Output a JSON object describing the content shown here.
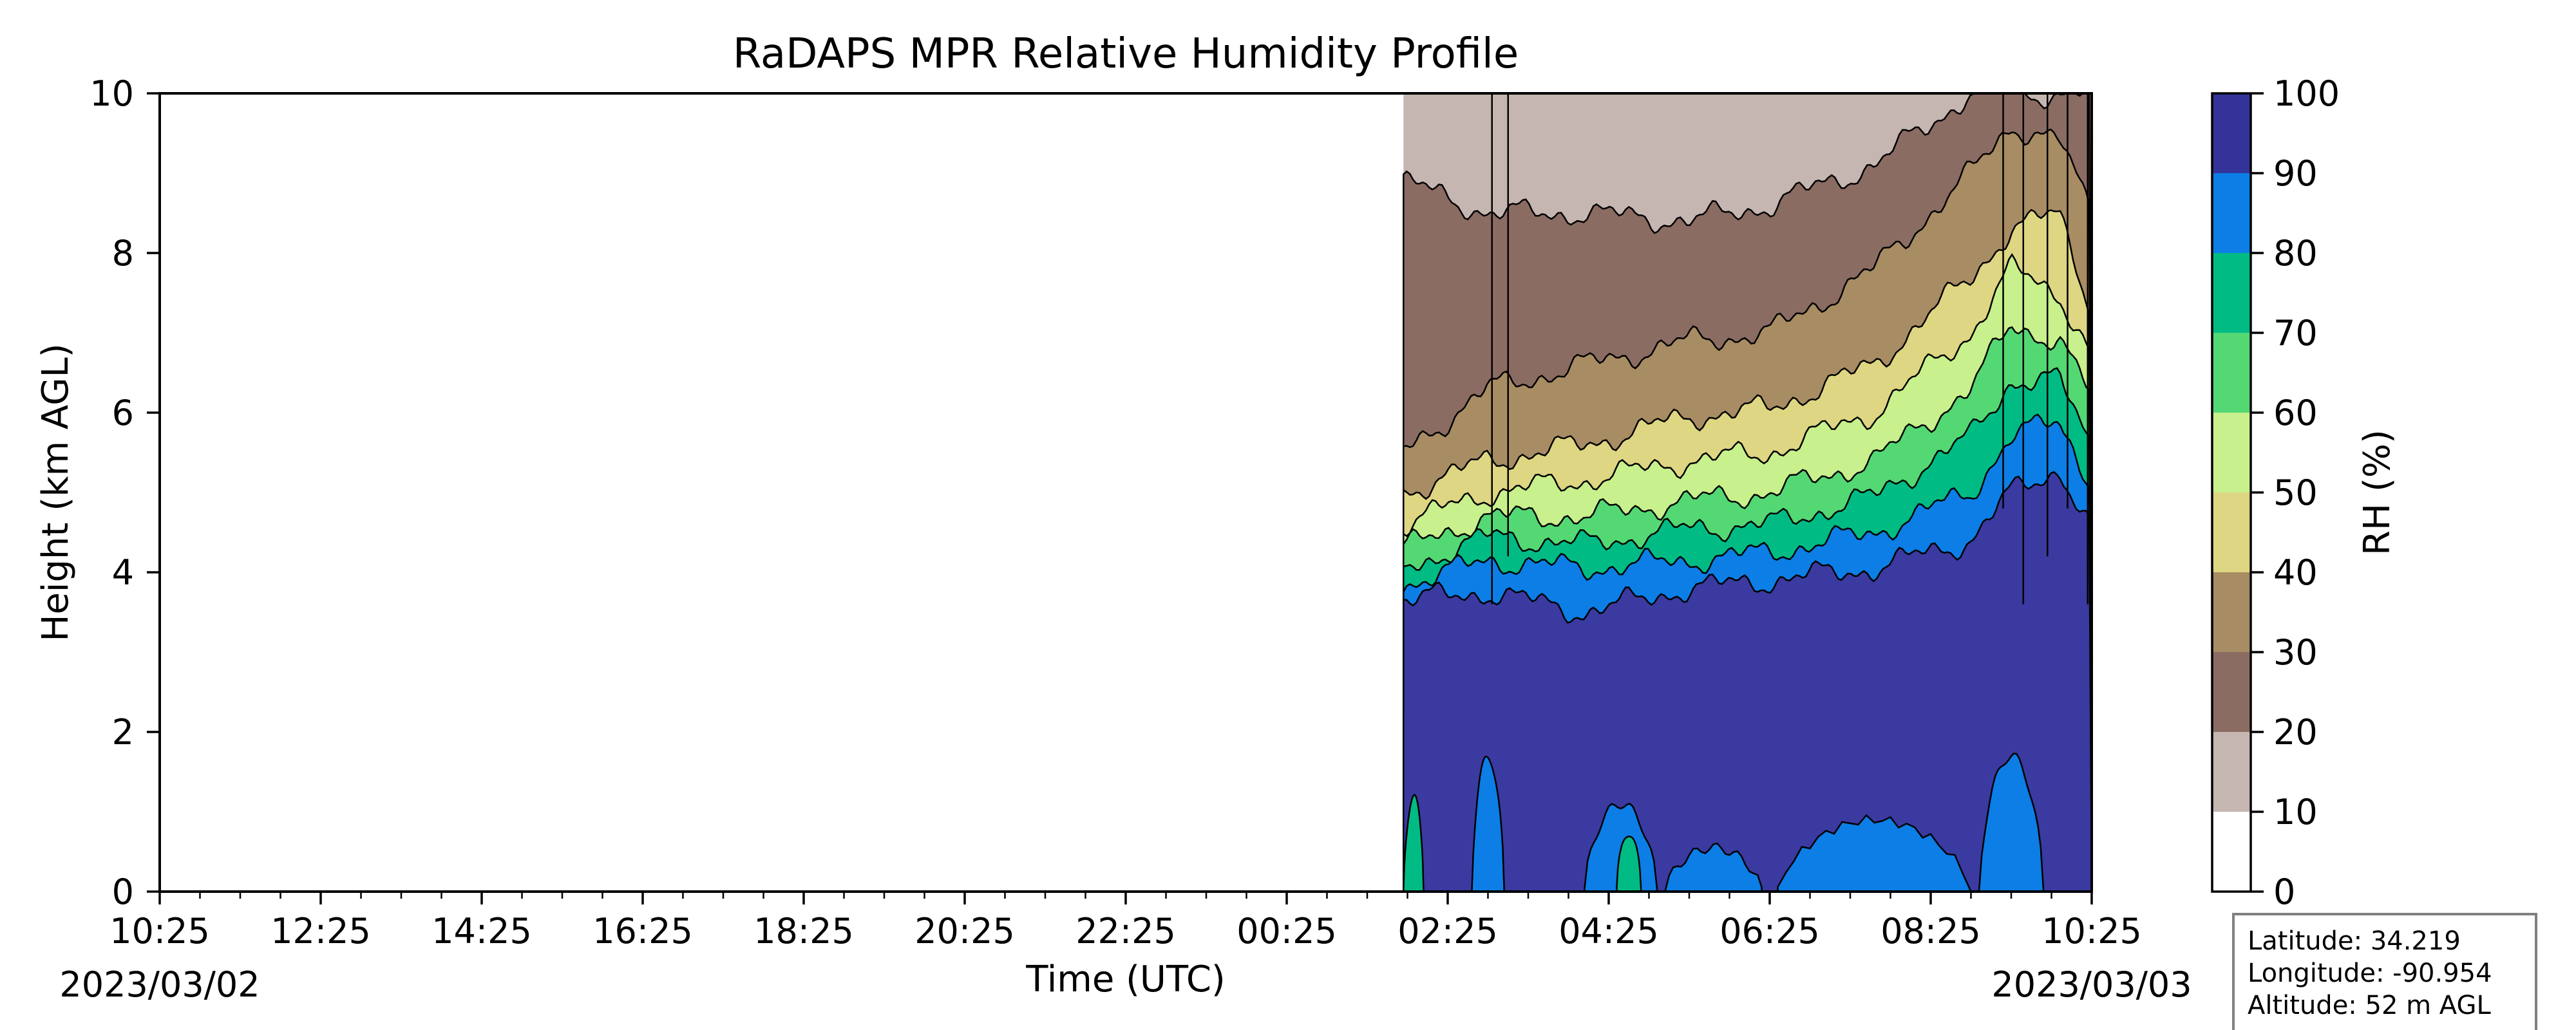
{
  "chart_data": {
    "type": "heatmap",
    "title": "RaDAPS MPR Relative Humidity Profile",
    "xlabel": "Time (UTC)",
    "ylabel": "Height (km AGL)",
    "x_tick_labels": [
      "10:25",
      "12:25",
      "14:25",
      "16:25",
      "18:25",
      "20:25",
      "22:25",
      "00:25",
      "02:25",
      "04:25",
      "06:25",
      "08:25",
      "10:25"
    ],
    "x_start_date": "2023/03/02",
    "x_end_date": "2023/03/03",
    "x_range_hours": [
      0,
      24
    ],
    "data_start_hour": 15.45,
    "ylim": [
      0,
      10
    ],
    "y_ticks": [
      0,
      2,
      4,
      6,
      8,
      10
    ],
    "colorbar": {
      "label": "RH (%)",
      "ticks": [
        0,
        10,
        20,
        30,
        40,
        50,
        60,
        70,
        80,
        90,
        100
      ],
      "colors": [
        "#ffffff",
        "#c6b6b2",
        "#8a6c63",
        "#a88c63",
        "#ded682",
        "#c8f08c",
        "#54d874",
        "#00bc84",
        "#0c7ee6",
        "#3a3aa0",
        "#33339a"
      ]
    },
    "profile_x_hours": [
      15.45,
      16.5,
      17.7,
      19.0,
      20.0,
      21.3,
      22.5,
      23.0,
      23.6,
      24.0
    ],
    "contour_heights_km": {
      "90": [
        3.65,
        3.75,
        3.5,
        3.8,
        3.9,
        4.05,
        4.4,
        5.0,
        5.3,
        4.5
      ],
      "80": [
        3.85,
        4.15,
        4.05,
        4.15,
        4.25,
        4.5,
        5.0,
        5.7,
        5.9,
        5.1
      ],
      "70": [
        4.05,
        4.45,
        4.35,
        4.55,
        4.6,
        4.95,
        5.7,
        6.4,
        6.4,
        5.6
      ],
      "60": [
        4.3,
        4.7,
        4.7,
        4.9,
        5.0,
        5.4,
        6.3,
        7.1,
        6.9,
        6.2
      ],
      "50": [
        4.6,
        5.0,
        5.15,
        5.4,
        5.5,
        6.0,
        7.0,
        7.8,
        7.5,
        6.7
      ],
      "40": [
        5.0,
        5.4,
        5.6,
        5.95,
        6.05,
        6.6,
        7.7,
        8.3,
        8.5,
        7.3
      ],
      "30": [
        5.5,
        6.3,
        6.6,
        6.9,
        7.0,
        7.8,
        9.0,
        9.6,
        9.4,
        8.5
      ],
      "20": [
        8.9,
        8.5,
        8.5,
        8.4,
        8.6,
        9.1,
        10.0,
        10.0,
        10.0,
        10.0
      ]
    },
    "info_box": {
      "latitude": "Latitude: 34.219",
      "longitude": "Longitude: -90.954",
      "altitude": "Altitude: 52 m AGL"
    }
  }
}
